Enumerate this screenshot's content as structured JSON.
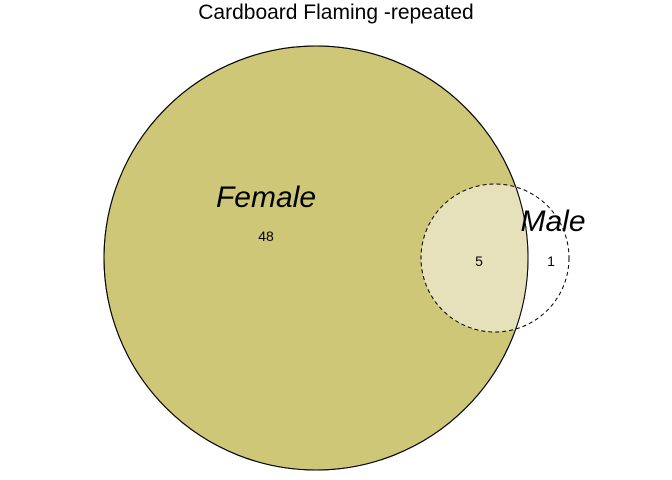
{
  "title": "Cardboard Flaming -repeated",
  "sets": [
    {
      "name": "Female",
      "fill": "#cfc778",
      "stroke_style": "solid"
    },
    {
      "name": "Male",
      "fill": "none",
      "stroke_style": "dashed"
    }
  ],
  "overlap_fill": "#e7e1bb",
  "counts": {
    "female_only": "48",
    "both": "5",
    "male_only": "1"
  }
}
